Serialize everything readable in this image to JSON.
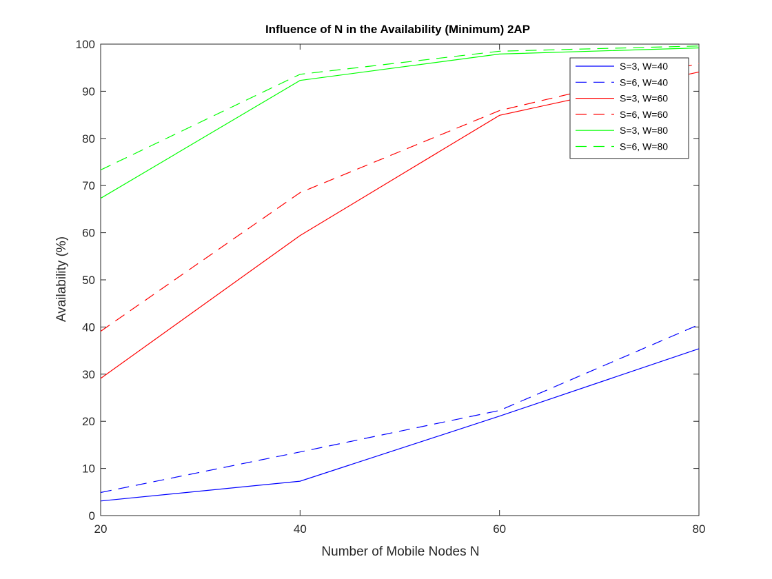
{
  "chart_data": {
    "type": "line",
    "title": "Influence of N in the Availability (Minimum) 2AP",
    "xlabel": "Number of Mobile Nodes N",
    "ylabel": "Availability (%)",
    "xlim": [
      20,
      80
    ],
    "ylim": [
      0,
      100
    ],
    "xticks": [
      20,
      40,
      60,
      80
    ],
    "yticks": [
      0,
      10,
      20,
      30,
      40,
      50,
      60,
      70,
      80,
      90,
      100
    ],
    "grid": false,
    "legend_position": "top-right",
    "x": [
      20,
      40,
      60,
      80
    ],
    "series": [
      {
        "name": "S=3, W=40",
        "color": "#0000ff",
        "dashed": false,
        "values": [
          3.1,
          7.3,
          21.1,
          35.4
        ]
      },
      {
        "name": "S=6, W=40",
        "color": "#0000ff",
        "dashed": true,
        "values": [
          4.9,
          13.5,
          22.3,
          40.5
        ]
      },
      {
        "name": "S=3, W=60",
        "color": "#ff0000",
        "dashed": false,
        "values": [
          29.1,
          59.4,
          84.9,
          94.1
        ]
      },
      {
        "name": "S=6, W=60",
        "color": "#ff0000",
        "dashed": true,
        "values": [
          39.1,
          68.5,
          85.9,
          95.9
        ]
      },
      {
        "name": "S=3, W=80",
        "color": "#00ff00",
        "dashed": false,
        "values": [
          67.3,
          92.3,
          97.9,
          99.2
        ]
      },
      {
        "name": "S=6, W=80",
        "color": "#00ff00",
        "dashed": true,
        "values": [
          73.3,
          93.6,
          98.5,
          99.6
        ]
      }
    ]
  }
}
